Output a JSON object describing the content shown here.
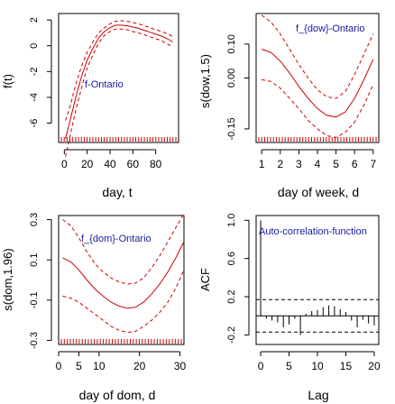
{
  "figure": {
    "background": "#ffffff",
    "curve_color": "#cc0000",
    "annotation_color": "#1a1aa0"
  },
  "chart_data": [
    {
      "type": "line",
      "panel": "top-left",
      "xlabel": "day, t",
      "ylabel": "f(t)",
      "annotation": "f-Ontario",
      "xlim": [
        -5,
        100
      ],
      "ylim": [
        -7.5,
        2.5
      ],
      "xticks": [
        "0",
        "20",
        "40",
        "60",
        "80"
      ],
      "yticks": [
        "2",
        "0",
        "-2",
        "-4",
        "-6"
      ],
      "rug": true,
      "series": [
        {
          "role": "estimate",
          "x": [
            1,
            5,
            10,
            15,
            20,
            25,
            30,
            35,
            40,
            45,
            50,
            55,
            60,
            65,
            70,
            75,
            80,
            85,
            90,
            95
          ],
          "y": [
            -7.2,
            -5.8,
            -4.0,
            -2.4,
            -1.1,
            -0.2,
            0.6,
            1.1,
            1.4,
            1.6,
            1.6,
            1.55,
            1.45,
            1.35,
            1.2,
            1.05,
            0.9,
            0.75,
            0.55,
            0.3
          ]
        },
        {
          "role": "upper",
          "x": [
            1,
            5,
            10,
            15,
            20,
            25,
            30,
            35,
            40,
            45,
            50,
            55,
            60,
            65,
            70,
            75,
            80,
            85,
            90,
            95
          ],
          "y": [
            -5.8,
            -4.7,
            -3.0,
            -1.6,
            -0.5,
            0.3,
            1.0,
            1.4,
            1.7,
            1.9,
            1.95,
            1.9,
            1.8,
            1.7,
            1.55,
            1.4,
            1.25,
            1.1,
            0.95,
            0.7
          ]
        },
        {
          "role": "lower",
          "x": [
            1,
            5,
            10,
            15,
            20,
            25,
            30,
            35,
            40,
            45,
            50,
            55,
            60,
            65,
            70,
            75,
            80,
            85,
            90,
            95
          ],
          "y": [
            -8.6,
            -7.0,
            -5.0,
            -3.3,
            -1.7,
            -0.7,
            0.2,
            0.8,
            1.1,
            1.3,
            1.3,
            1.25,
            1.1,
            1.0,
            0.85,
            0.7,
            0.55,
            0.4,
            0.15,
            -0.1
          ]
        }
      ]
    },
    {
      "type": "line",
      "panel": "top-right",
      "xlabel": "day of week, d",
      "ylabel": "s(dow,1.5)",
      "annotation": "f_{dow}-Ontario",
      "xlim": [
        0.7,
        7.3
      ],
      "ylim": [
        -0.19,
        0.19
      ],
      "xticks": [
        "1",
        "2",
        "3",
        "4",
        "5",
        "6",
        "7"
      ],
      "yticks": [
        "-0.15",
        "0.00",
        "0.10"
      ],
      "ytick_values": [
        -0.15,
        0.0,
        0.1
      ],
      "rug": true,
      "series": [
        {
          "role": "estimate",
          "x": [
            1,
            1.5,
            2,
            2.5,
            3,
            3.5,
            4,
            4.5,
            5,
            5.5,
            6,
            6.5,
            7
          ],
          "y": [
            0.085,
            0.075,
            0.05,
            0.015,
            -0.025,
            -0.06,
            -0.09,
            -0.11,
            -0.115,
            -0.1,
            -0.06,
            -0.005,
            0.055
          ]
        },
        {
          "role": "upper",
          "x": [
            1,
            1.5,
            2,
            2.5,
            3,
            3.5,
            4,
            4.5,
            5,
            5.5,
            6,
            6.5,
            7
          ],
          "y": [
            0.185,
            0.165,
            0.13,
            0.085,
            0.04,
            0.0,
            -0.035,
            -0.055,
            -0.06,
            -0.04,
            0.01,
            0.07,
            0.13
          ]
        },
        {
          "role": "lower",
          "x": [
            1,
            1.5,
            2,
            2.5,
            3,
            3.5,
            4,
            4.5,
            5,
            5.5,
            6,
            6.5,
            7
          ],
          "y": [
            -0.005,
            -0.01,
            -0.03,
            -0.06,
            -0.09,
            -0.125,
            -0.15,
            -0.17,
            -0.175,
            -0.16,
            -0.13,
            -0.08,
            -0.02
          ]
        }
      ]
    },
    {
      "type": "line",
      "panel": "bottom-left",
      "xlabel": "day of dom, d",
      "ylabel": "s(dom,1.96)",
      "annotation": "f_{dom}-Ontario",
      "xlim": [
        0,
        31
      ],
      "ylim": [
        -0.32,
        0.32
      ],
      "xticks": [
        "0",
        "5",
        "10",
        "20",
        "30"
      ],
      "xtick_values": [
        0,
        5,
        10,
        20,
        30
      ],
      "yticks": [
        "-0.3",
        "-0.1",
        "0.1",
        "0.3"
      ],
      "ytick_values": [
        -0.3,
        -0.1,
        0.1,
        0.3
      ],
      "rug": true,
      "series": [
        {
          "role": "estimate",
          "x": [
            1,
            3,
            5,
            7,
            9,
            11,
            13,
            15,
            17,
            19,
            21,
            23,
            25,
            27,
            29,
            31
          ],
          "y": [
            0.11,
            0.09,
            0.05,
            0.0,
            -0.045,
            -0.08,
            -0.11,
            -0.13,
            -0.14,
            -0.135,
            -0.11,
            -0.07,
            -0.02,
            0.04,
            0.11,
            0.19
          ]
        },
        {
          "role": "upper",
          "x": [
            1,
            3,
            5,
            7,
            9,
            11,
            13,
            15,
            17,
            19,
            21,
            23,
            25,
            27,
            29,
            31
          ],
          "y": [
            0.3,
            0.27,
            0.21,
            0.14,
            0.08,
            0.04,
            0.01,
            -0.01,
            -0.02,
            -0.015,
            0.01,
            0.06,
            0.12,
            0.19,
            0.26,
            0.33
          ]
        },
        {
          "role": "lower",
          "x": [
            1,
            3,
            5,
            7,
            9,
            11,
            13,
            15,
            17,
            19,
            21,
            23,
            25,
            27,
            29,
            31
          ],
          "y": [
            -0.08,
            -0.09,
            -0.11,
            -0.14,
            -0.17,
            -0.2,
            -0.23,
            -0.25,
            -0.26,
            -0.255,
            -0.23,
            -0.2,
            -0.16,
            -0.11,
            -0.04,
            0.05
          ]
        }
      ]
    },
    {
      "type": "bar",
      "panel": "bottom-right",
      "xlabel": "Lag",
      "ylabel": "ACF",
      "annotation": "Auto-correlation-function",
      "xlim": [
        -0.8,
        20.8
      ],
      "ylim": [
        -0.3,
        1.05
      ],
      "xticks": [
        "0",
        "5",
        "10",
        "15",
        "20"
      ],
      "xtick_values": [
        0,
        5,
        10,
        15,
        20
      ],
      "yticks": [
        "-0.2",
        "0.2",
        "0.6",
        "1.0"
      ],
      "ytick_values": [
        -0.2,
        0.2,
        0.6,
        1.0
      ],
      "confidence_bounds": [
        0.17,
        -0.17
      ],
      "lags": [
        0,
        1,
        2,
        3,
        4,
        5,
        6,
        7,
        8,
        9,
        10,
        11,
        12,
        13,
        14,
        15,
        16,
        17,
        18,
        19,
        20
      ],
      "values": [
        1.0,
        -0.03,
        -0.05,
        -0.07,
        -0.12,
        -0.09,
        -0.03,
        -0.2,
        0.02,
        0.05,
        0.06,
        0.09,
        0.11,
        0.1,
        0.07,
        0.04,
        -0.05,
        -0.12,
        -0.04,
        -0.08,
        -0.1
      ]
    }
  ]
}
